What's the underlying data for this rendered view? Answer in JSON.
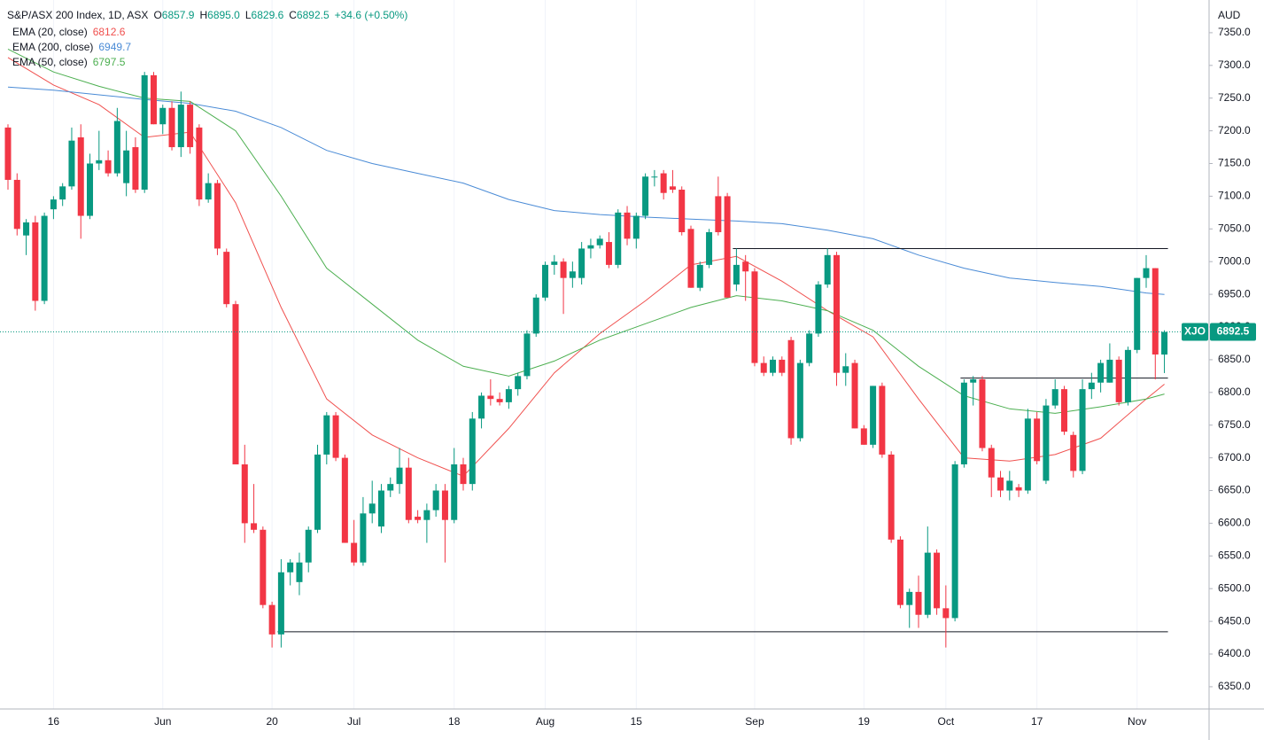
{
  "chart_data": {
    "type": "candlestick",
    "title": "S&P/ASX 200 Index, 1D, ASX",
    "quote": [
      {
        "key": "O",
        "value": "6857.9"
      },
      {
        "key": "H",
        "value": "6895.0"
      },
      {
        "key": "L",
        "value": "6829.6"
      },
      {
        "key": "C",
        "value": "6892.5"
      }
    ],
    "change": "+34.6 (+0.50%)",
    "currency": "AUD",
    "symbol": "XJO",
    "up_color": "#089981",
    "down_color": "#f23645",
    "categories": [
      null,
      null,
      null,
      null,
      null,
      "16",
      null,
      null,
      null,
      null,
      null,
      null,
      null,
      null,
      null,
      null,
      null,
      "Jun",
      null,
      null,
      null,
      null,
      null,
      null,
      null,
      null,
      null,
      null,
      null,
      "20",
      null,
      null,
      null,
      null,
      null,
      null,
      null,
      null,
      "Jul",
      null,
      null,
      null,
      null,
      null,
      null,
      null,
      null,
      null,
      null,
      "18",
      null,
      null,
      null,
      null,
      null,
      null,
      null,
      null,
      null,
      "Aug",
      null,
      null,
      null,
      null,
      null,
      null,
      null,
      null,
      null,
      "15",
      null,
      null,
      null,
      null,
      null,
      null,
      null,
      null,
      null,
      null,
      null,
      null,
      "Sep",
      null,
      null,
      null,
      null,
      null,
      null,
      null,
      null,
      null,
      null,
      null,
      "19",
      null,
      null,
      null,
      null,
      null,
      null,
      null,
      null,
      "Oct",
      null,
      null,
      null,
      null,
      null,
      null,
      null,
      null,
      null,
      "17",
      null,
      null,
      null,
      null,
      null,
      null,
      null,
      null,
      null,
      null,
      "Nov",
      null,
      null,
      null
    ],
    "open": [
      7205,
      7125,
      7040,
      7060,
      6940,
      7080,
      7095,
      7115,
      7190,
      7070,
      7150,
      7155,
      7135,
      7120,
      7175,
      7110,
      7285,
      7210,
      7235,
      7175,
      7240,
      7205,
      7095,
      7120,
      7015,
      6935,
      6690,
      6600,
      6590,
      6475,
      6430,
      6525,
      6510,
      6540,
      6590,
      6705,
      6765,
      6700,
      6570,
      6540,
      6615,
      6595,
      6650,
      6660,
      6685,
      6610,
      6605,
      6620,
      6650,
      6605,
      6690,
      6660,
      6760,
      6795,
      6790,
      6785,
      6805,
      6825,
      6890,
      6945,
      6995,
      7000,
      6975,
      6975,
      7020,
      7025,
      7030,
      6995,
      7075,
      7035,
      7070,
      7130,
      7135,
      7115,
      7110,
      7050,
      6960,
      6995,
      7100,
      7100,
      6965,
      7000,
      6985,
      6845,
      6830,
      6850,
      6880,
      6730,
      6845,
      6890,
      6965,
      7010,
      6830,
      6845,
      6745,
      6720,
      6810,
      6705,
      6575,
      6475,
      6495,
      6460,
      6555,
      6470,
      6455,
      6690,
      6815,
      6820,
      6715,
      6670,
      6650,
      6655,
      6650,
      6760,
      6665,
      6780,
      6805,
      6735,
      6680,
      6805,
      6815,
      6815,
      6850,
      6785,
      6865,
      6975,
      6990,
      6857.9
    ],
    "high": [
      7210,
      7135,
      7065,
      7070,
      7075,
      7100,
      7120,
      7205,
      7210,
      7165,
      7200,
      7170,
      7235,
      7200,
      7190,
      7290,
      7290,
      7240,
      7245,
      7260,
      7245,
      7210,
      7135,
      7125,
      7020,
      6940,
      6720,
      6660,
      6595,
      6480,
      6545,
      6545,
      6555,
      6595,
      6720,
      6770,
      6770,
      6705,
      6605,
      6640,
      6665,
      6660,
      6670,
      6715,
      6700,
      6620,
      6630,
      6660,
      6660,
      6715,
      6700,
      6770,
      6800,
      6820,
      6800,
      6810,
      6830,
      6895,
      6950,
      7000,
      7010,
      7005,
      7000,
      7030,
      7035,
      7040,
      7045,
      7080,
      7085,
      7075,
      7135,
      7140,
      7140,
      7140,
      7115,
      7055,
      7000,
      7050,
      7130,
      7105,
      7020,
      7010,
      6990,
      6855,
      6855,
      6855,
      6885,
      6850,
      6895,
      6970,
      7020,
      7015,
      6860,
      6850,
      6750,
      6810,
      6815,
      6710,
      6580,
      6500,
      6520,
      6595,
      6560,
      6505,
      6695,
      6820,
      6825,
      6825,
      6720,
      6680,
      6680,
      6660,
      6775,
      6770,
      6790,
      6820,
      6810,
      6740,
      6820,
      6830,
      6850,
      6875,
      6855,
      6870,
      6975,
      7010,
      6990,
      6895
    ],
    "low": [
      7110,
      7040,
      7010,
      6925,
      6935,
      7065,
      7085,
      7110,
      7035,
      7065,
      7140,
      7130,
      7130,
      7100,
      7105,
      7105,
      7210,
      7195,
      7170,
      7160,
      7165,
      7085,
      7090,
      7010,
      6930,
      6690,
      6570,
      6585,
      6470,
      6410,
      6410,
      6505,
      6490,
      6525,
      6585,
      6690,
      6695,
      6570,
      6535,
      6535,
      6600,
      6585,
      6640,
      6645,
      6600,
      6600,
      6570,
      6610,
      6540,
      6600,
      6650,
      6650,
      6745,
      6780,
      6780,
      6775,
      6795,
      6820,
      6885,
      6940,
      6980,
      6920,
      6960,
      6965,
      7005,
      7020,
      6990,
      6990,
      7025,
      7020,
      7065,
      7115,
      7095,
      7105,
      7040,
      6960,
      6955,
      6990,
      7040,
      6945,
      6955,
      6940,
      6840,
      6825,
      6825,
      6825,
      6720,
      6725,
      6840,
      6885,
      6960,
      6810,
      6810,
      6745,
      6720,
      6715,
      6700,
      6570,
      6470,
      6440,
      6440,
      6455,
      6460,
      6410,
      6450,
      6685,
      6780,
      6710,
      6640,
      6640,
      6635,
      6640,
      6645,
      6690,
      6660,
      6775,
      6735,
      6670,
      6675,
      6790,
      6800,
      6815,
      6780,
      6780,
      6860,
      6960,
      6820,
      6829.6
    ],
    "close": [
      7125,
      7050,
      7060,
      6940,
      7070,
      7095,
      7115,
      7185,
      7070,
      7150,
      7155,
      7135,
      7215,
      7170,
      7110,
      7285,
      7210,
      7235,
      7175,
      7240,
      7175,
      7095,
      7120,
      7020,
      6935,
      6690,
      6600,
      6590,
      6475,
      6430,
      6525,
      6540,
      6540,
      6590,
      6705,
      6765,
      6700,
      6570,
      6540,
      6615,
      6630,
      6650,
      6660,
      6685,
      6605,
      6605,
      6620,
      6650,
      6605,
      6690,
      6660,
      6760,
      6795,
      6790,
      6785,
      6805,
      6825,
      6890,
      6945,
      6995,
      7000,
      6975,
      6985,
      7020,
      7025,
      7035,
      6995,
      7075,
      7035,
      7070,
      7130,
      7130,
      7105,
      7110,
      7045,
      6960,
      6995,
      7045,
      7045,
      6945,
      6995,
      6985,
      6845,
      6830,
      6850,
      6830,
      6730,
      6845,
      6890,
      6965,
      7010,
      6830,
      6840,
      6745,
      6720,
      6810,
      6705,
      6575,
      6475,
      6495,
      6460,
      6555,
      6470,
      6455,
      6690,
      6815,
      6820,
      6715,
      6670,
      6650,
      6665,
      6650,
      6760,
      6695,
      6780,
      6805,
      6740,
      6680,
      6805,
      6815,
      6845,
      6850,
      6785,
      6865,
      6975,
      6990,
      6858,
      6892.5
    ],
    "series": [
      {
        "name": "EMA (20, close)",
        "color": "#f0504e",
        "x": [
          0,
          5,
          10,
          15,
          20,
          25,
          30,
          35,
          40,
          45,
          50,
          55,
          60,
          65,
          70,
          75,
          80,
          85,
          90,
          95,
          100,
          105,
          110,
          115,
          120,
          125,
          127
        ],
        "values": [
          7312,
          7270,
          7240,
          7190,
          7198,
          7090,
          6930,
          6790,
          6735,
          6700,
          6672,
          6745,
          6830,
          6890,
          6940,
          6995,
          7008,
          6970,
          6925,
          6885,
          6790,
          6700,
          6695,
          6705,
          6730,
          6790,
          6812.6
        ]
      },
      {
        "name": "EMA (200, close)",
        "color": "#4a8bd6",
        "x": [
          0,
          5,
          10,
          15,
          20,
          25,
          30,
          35,
          40,
          45,
          50,
          55,
          60,
          65,
          70,
          75,
          80,
          85,
          90,
          95,
          100,
          105,
          110,
          115,
          120,
          125,
          127
        ],
        "values": [
          7267,
          7262,
          7255,
          7248,
          7242,
          7230,
          7205,
          7170,
          7150,
          7135,
          7120,
          7095,
          7078,
          7072,
          7068,
          7065,
          7062,
          7058,
          7048,
          7035,
          7010,
          6990,
          6975,
          6968,
          6962,
          6952,
          6949.7
        ]
      },
      {
        "name": "EMA (50, close)",
        "color": "#4caf50",
        "x": [
          0,
          5,
          10,
          15,
          20,
          25,
          30,
          35,
          40,
          45,
          50,
          55,
          60,
          65,
          70,
          75,
          80,
          85,
          90,
          95,
          100,
          105,
          110,
          115,
          120,
          125,
          127
        ],
        "values": [
          7325,
          7290,
          7268,
          7250,
          7245,
          7200,
          7100,
          6990,
          6935,
          6880,
          6840,
          6825,
          6848,
          6880,
          6905,
          6930,
          6948,
          6940,
          6925,
          6895,
          6840,
          6795,
          6775,
          6768,
          6778,
          6790,
          6797.5
        ]
      }
    ],
    "levels": [
      {
        "value": 7020,
        "from": 80,
        "to": 127
      },
      {
        "value": 6822,
        "from": 105,
        "to": 127
      },
      {
        "value": 6434,
        "from": 30,
        "to": 127
      }
    ],
    "ylim": [
      6316,
      7400
    ],
    "yticks": [
      {
        "value": 6350,
        "label": "6350.0"
      },
      {
        "value": 6400,
        "label": "6400.0"
      },
      {
        "value": 6450,
        "label": "6450.0"
      },
      {
        "value": 6500,
        "label": "6500.0"
      },
      {
        "value": 6550,
        "label": "6550.0"
      },
      {
        "value": 6600,
        "label": "6600.0"
      },
      {
        "value": 6650,
        "label": "6650.0"
      },
      {
        "value": 6700,
        "label": "6700.0"
      },
      {
        "value": 6750,
        "label": "6750.0"
      },
      {
        "value": 6800,
        "label": "6800.0"
      },
      {
        "value": 6850,
        "label": "6850.0"
      },
      {
        "value": 6900,
        "label": "6900.0"
      },
      {
        "value": 6950,
        "label": "6950.0"
      },
      {
        "value": 7000,
        "label": "7000.0"
      },
      {
        "value": 7050,
        "label": "7050.0"
      },
      {
        "value": 7100,
        "label": "7100.0"
      },
      {
        "value": 7150,
        "label": "7150.0"
      },
      {
        "value": 7200,
        "label": "7200.0"
      },
      {
        "value": 7250,
        "label": "7250.0"
      },
      {
        "value": 7300,
        "label": "7300.0"
      },
      {
        "value": 7350,
        "label": "7350.0"
      }
    ],
    "grid": true
  }
}
